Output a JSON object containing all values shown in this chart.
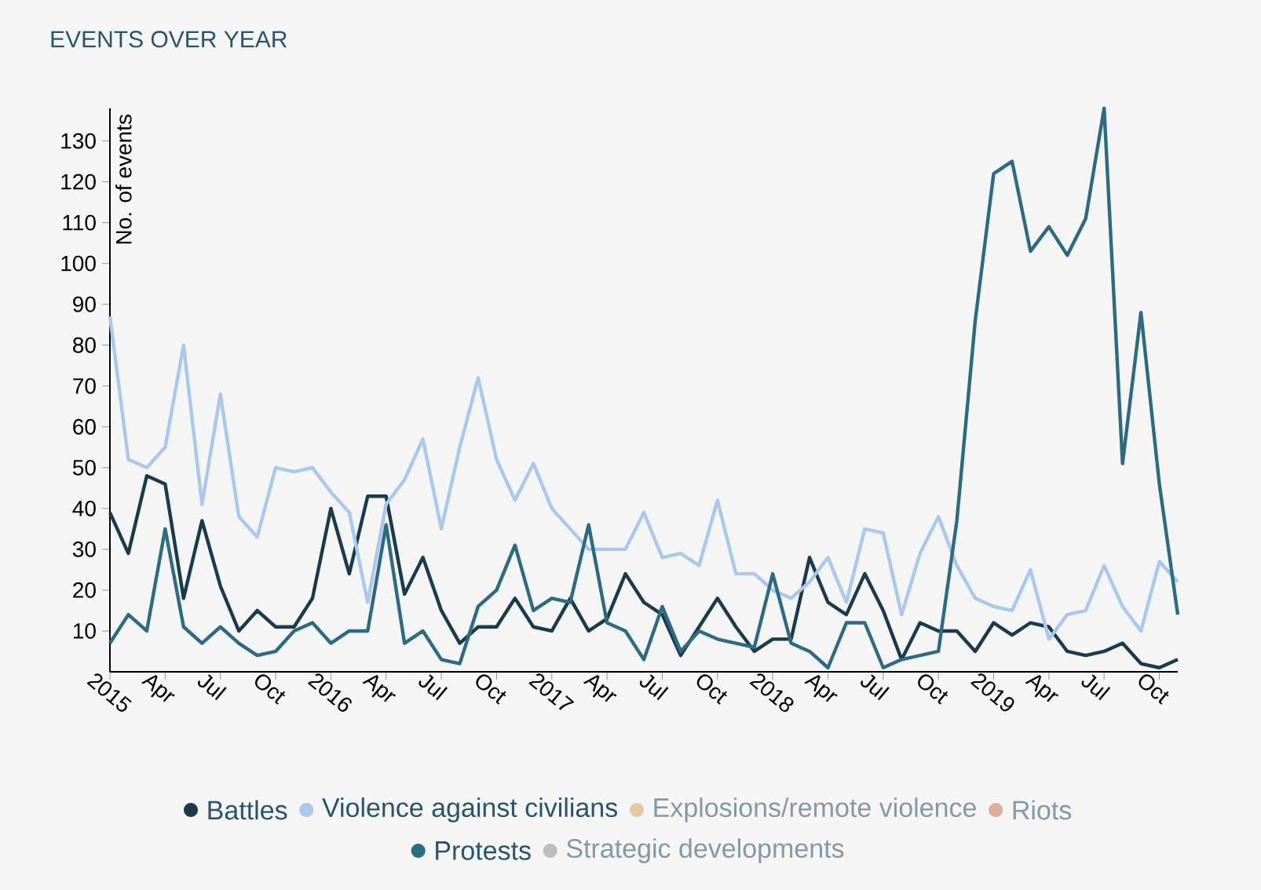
{
  "chart_data": {
    "type": "line",
    "title": "EVENTS OVER YEAR",
    "ylabel": "No. of events",
    "x": [
      "2015-01",
      "2015-02",
      "2015-03",
      "2015-04",
      "2015-05",
      "2015-06",
      "2015-07",
      "2015-08",
      "2015-09",
      "2015-10",
      "2015-11",
      "2015-12",
      "2016-01",
      "2016-02",
      "2016-03",
      "2016-04",
      "2016-05",
      "2016-06",
      "2016-07",
      "2016-08",
      "2016-09",
      "2016-10",
      "2016-11",
      "2016-12",
      "2017-01",
      "2017-02",
      "2017-03",
      "2017-04",
      "2017-05",
      "2017-06",
      "2017-07",
      "2017-08",
      "2017-09",
      "2017-10",
      "2017-11",
      "2017-12",
      "2018-01",
      "2018-02",
      "2018-03",
      "2018-04",
      "2018-05",
      "2018-06",
      "2018-07",
      "2018-08",
      "2018-09",
      "2018-10",
      "2018-11",
      "2018-12",
      "2019-01",
      "2019-02",
      "2019-03",
      "2019-04",
      "2019-05",
      "2019-06",
      "2019-07",
      "2019-08",
      "2019-09",
      "2019-10",
      "2019-11"
    ],
    "series": [
      {
        "name": "Battles",
        "color": "#1b3a4b",
        "values": [
          39,
          29,
          48,
          46,
          18,
          37,
          21,
          10,
          15,
          11,
          11,
          18,
          40,
          24,
          43,
          43,
          19,
          28,
          15,
          7,
          11,
          11,
          18,
          11,
          10,
          18,
          10,
          13,
          24,
          17,
          14,
          4,
          11,
          18,
          11,
          5,
          8,
          8,
          28,
          17,
          14,
          24,
          15,
          3,
          12,
          10,
          10,
          5,
          12,
          9,
          12,
          11,
          5,
          4,
          5,
          7,
          2,
          1,
          3
        ]
      },
      {
        "name": "Violence against civilians",
        "color": "#a9c8ec",
        "values": [
          87,
          52,
          50,
          55,
          80,
          41,
          68,
          38,
          33,
          50,
          49,
          50,
          44,
          39,
          17,
          41,
          47,
          57,
          35,
          55,
          72,
          52,
          42,
          51,
          40,
          35,
          30,
          30,
          30,
          39,
          28,
          29,
          26,
          42,
          24,
          24,
          20,
          18,
          22,
          28,
          17,
          35,
          34,
          14,
          29,
          38,
          26,
          18,
          16,
          15,
          25,
          8,
          14,
          15,
          26,
          16,
          10,
          27,
          22
        ]
      },
      {
        "name": "Explosions/remote violence",
        "color": "#e6c9a0",
        "values": [
          null,
          null,
          null,
          null,
          null,
          null,
          null,
          null,
          null,
          null,
          null,
          null,
          null,
          null,
          null,
          null,
          null,
          null,
          null,
          null,
          null,
          null,
          null,
          null,
          null,
          null,
          null,
          null,
          null,
          null,
          null,
          null,
          null,
          null,
          null,
          null,
          null,
          null,
          null,
          null,
          null,
          null,
          null,
          null,
          null,
          null,
          null,
          null,
          null,
          null,
          null,
          null,
          null,
          null,
          null,
          null,
          null,
          null,
          null
        ]
      },
      {
        "name": "Riots",
        "color": "#dcae95",
        "values": [
          null,
          null,
          null,
          null,
          null,
          null,
          null,
          null,
          null,
          null,
          null,
          null,
          null,
          null,
          null,
          null,
          null,
          null,
          null,
          null,
          null,
          null,
          null,
          null,
          null,
          null,
          null,
          null,
          null,
          null,
          null,
          null,
          null,
          null,
          null,
          null,
          null,
          null,
          null,
          null,
          null,
          null,
          null,
          null,
          null,
          null,
          null,
          null,
          null,
          null,
          null,
          null,
          null,
          null,
          null,
          null,
          null,
          null,
          null
        ]
      },
      {
        "name": "Protests",
        "color": "#2e6b80",
        "values": [
          7,
          14,
          10,
          35,
          11,
          7,
          11,
          7,
          4,
          5,
          10,
          12,
          7,
          10,
          10,
          36,
          7,
          10,
          3,
          2,
          16,
          20,
          31,
          15,
          18,
          17,
          36,
          12,
          10,
          3,
          16,
          5,
          10,
          8,
          7,
          6,
          24,
          7,
          5,
          1,
          12,
          12,
          1,
          3,
          4,
          5,
          37,
          86,
          122,
          125,
          103,
          109,
          102,
          111,
          138,
          51,
          88,
          46,
          14
        ]
      },
      {
        "name": "Strategic developments",
        "color": "#bdbdbd",
        "values": [
          null,
          null,
          null,
          null,
          null,
          null,
          null,
          null,
          null,
          null,
          null,
          null,
          null,
          null,
          null,
          null,
          null,
          null,
          null,
          null,
          null,
          null,
          null,
          null,
          null,
          null,
          null,
          null,
          null,
          null,
          null,
          null,
          null,
          null,
          null,
          null,
          null,
          null,
          null,
          null,
          null,
          null,
          null,
          null,
          null,
          null,
          null,
          null,
          null,
          null,
          null,
          null,
          null,
          null,
          null,
          null,
          null,
          null,
          null
        ]
      }
    ],
    "xlim": [
      "2015-01",
      "2019-11"
    ],
    "ylim": [
      0,
      138
    ],
    "xticks": [
      {
        "value": "2015-01",
        "label": "2015"
      },
      {
        "value": "2015-04",
        "label": "Apr"
      },
      {
        "value": "2015-07",
        "label": "Jul"
      },
      {
        "value": "2015-10",
        "label": "Oct"
      },
      {
        "value": "2016-01",
        "label": "2016"
      },
      {
        "value": "2016-04",
        "label": "Apr"
      },
      {
        "value": "2016-07",
        "label": "Jul"
      },
      {
        "value": "2016-10",
        "label": "Oct"
      },
      {
        "value": "2017-01",
        "label": "2017"
      },
      {
        "value": "2017-04",
        "label": "Apr"
      },
      {
        "value": "2017-07",
        "label": "Jul"
      },
      {
        "value": "2017-10",
        "label": "Oct"
      },
      {
        "value": "2018-01",
        "label": "2018"
      },
      {
        "value": "2018-04",
        "label": "Apr"
      },
      {
        "value": "2018-07",
        "label": "Jul"
      },
      {
        "value": "2018-10",
        "label": "Oct"
      },
      {
        "value": "2019-01",
        "label": "2019"
      },
      {
        "value": "2019-04",
        "label": "Apr"
      },
      {
        "value": "2019-07",
        "label": "Jul"
      },
      {
        "value": "2019-10",
        "label": "Oct"
      }
    ],
    "yticks": [
      10,
      20,
      30,
      40,
      50,
      60,
      70,
      80,
      90,
      100,
      110,
      120,
      130
    ],
    "grid": false,
    "legend": "bottom",
    "marker": "none",
    "line_style": "solid"
  }
}
